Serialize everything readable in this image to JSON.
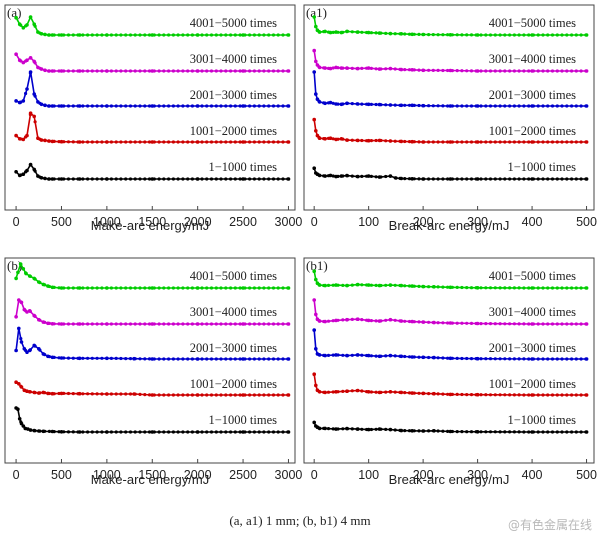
{
  "caption": "(a, a1) 1 mm; (b, b1) 4 mm",
  "watermark": "@有色金属在线",
  "series_names": [
    "4001−5000 times",
    "3001−4000 times",
    "2001−3000 times",
    "1001−2000 times",
    "1−1000 times"
  ],
  "colors": {
    "4001−5000 times": "#00cc00",
    "3001−4000 times": "#cc00cc",
    "2001−3000 times": "#0000cc",
    "1001−2000 times": "#cc0000",
    "1−1000 times": "#000000"
  },
  "chart_data": [
    {
      "type": "line",
      "panel": "(a)",
      "xlabel": "Make-arc energy/mJ",
      "xlim": [
        -100,
        3050
      ],
      "xticks": [
        "0",
        "500",
        "1000",
        "1500",
        "2000",
        "2500",
        "3000"
      ],
      "legend_placement": "inline-right",
      "grid": false,
      "series": [
        {
          "name": "4001−5000 times",
          "x": [
            0,
            40,
            80,
            120,
            160,
            200,
            240,
            280,
            320,
            360,
            400,
            500,
            700,
            1000,
            1500,
            2000,
            2500,
            3000
          ],
          "y": [
            0.72,
            0.45,
            0.3,
            0.42,
            0.75,
            0.45,
            0.12,
            0.05,
            0.02,
            0,
            0,
            0,
            0,
            0,
            0,
            0,
            0,
            0
          ]
        },
        {
          "name": "3001−4000 times",
          "x": [
            0,
            40,
            80,
            120,
            160,
            200,
            240,
            280,
            320,
            360,
            400,
            500,
            700,
            1000,
            1500,
            2000,
            2500,
            3000
          ],
          "y": [
            0.7,
            0.45,
            0.35,
            0.45,
            0.55,
            0.4,
            0.15,
            0.08,
            0.03,
            0,
            0,
            0,
            0,
            0,
            0,
            0,
            0,
            0
          ]
        },
        {
          "name": "2001−3000 times",
          "x": [
            0,
            40,
            80,
            120,
            160,
            200,
            240,
            280,
            320,
            360,
            400,
            500,
            700,
            1000,
            1500,
            2000,
            2500,
            3000
          ],
          "y": [
            0.15,
            0.1,
            0.15,
            0.5,
            1,
            0.35,
            0.12,
            0.05,
            0.02,
            0,
            0,
            0,
            0,
            0,
            0,
            0,
            0,
            0
          ]
        },
        {
          "name": "1001−2000 times",
          "x": [
            0,
            40,
            80,
            120,
            160,
            200,
            240,
            280,
            320,
            360,
            400,
            500,
            700,
            1000,
            1500,
            2000,
            2500,
            3000
          ],
          "y": [
            0.2,
            0.1,
            0.08,
            0.2,
            0.9,
            0.8,
            0.12,
            0.06,
            0.05,
            0.03,
            0.02,
            0.01,
            0,
            0,
            0,
            0,
            0,
            0
          ]
        },
        {
          "name": "1−1000 times",
          "x": [
            0,
            40,
            80,
            120,
            160,
            200,
            240,
            280,
            320,
            360,
            400,
            500,
            700,
            1000,
            1500,
            2000,
            2500,
            3000
          ],
          "y": [
            0.3,
            0.15,
            0.2,
            0.35,
            0.6,
            0.4,
            0.12,
            0.05,
            0.02,
            0,
            0,
            0,
            0,
            0,
            0,
            0,
            0,
            0
          ]
        }
      ]
    },
    {
      "type": "line",
      "panel": "(a1)",
      "xlabel": "Break-arc energy/mJ",
      "xlim": [
        -15,
        510
      ],
      "xticks": [
        "0",
        "100",
        "200",
        "300",
        "400",
        "500"
      ],
      "legend_placement": "inline-right",
      "grid": false,
      "series": [
        {
          "name": "4001−5000 times",
          "x": [
            0,
            3,
            6,
            10,
            20,
            30,
            40,
            50,
            60,
            80,
            100,
            120,
            140,
            160,
            180,
            200,
            250,
            300,
            400,
            500
          ],
          "y": [
            0.75,
            0.35,
            0.2,
            0.12,
            0.15,
            0.1,
            0.12,
            0.1,
            0.15,
            0.12,
            0.1,
            0.08,
            0.06,
            0.05,
            0.03,
            0.02,
            0.01,
            0,
            0,
            0
          ]
        },
        {
          "name": "3001−4000 times",
          "x": [
            0,
            3,
            6,
            10,
            20,
            30,
            40,
            50,
            60,
            80,
            100,
            120,
            140,
            160,
            180,
            200,
            250,
            300,
            400,
            500
          ],
          "y": [
            0.85,
            0.4,
            0.25,
            0.15,
            0.12,
            0.1,
            0.15,
            0.12,
            0.12,
            0.1,
            0.12,
            0.08,
            0.1,
            0.06,
            0.05,
            0.03,
            0.02,
            0,
            0,
            0
          ]
        },
        {
          "name": "2001−3000 times",
          "x": [
            0,
            3,
            6,
            10,
            20,
            30,
            40,
            50,
            60,
            80,
            100,
            120,
            140,
            160,
            180,
            200,
            250,
            300,
            400,
            500
          ],
          "y": [
            1,
            0.35,
            0.2,
            0.12,
            0.08,
            0.1,
            0.06,
            0.05,
            0.08,
            0.06,
            0.05,
            0.04,
            0.03,
            0.02,
            0.02,
            0.01,
            0,
            0,
            0,
            0
          ]
        },
        {
          "name": "1001−2000 times",
          "x": [
            0,
            3,
            6,
            10,
            20,
            30,
            40,
            50,
            60,
            80,
            100,
            120,
            140,
            160,
            180,
            200,
            250,
            300,
            400,
            500
          ],
          "y": [
            0.7,
            0.35,
            0.2,
            0.12,
            0.1,
            0.12,
            0.08,
            0.1,
            0.06,
            0.05,
            0.04,
            0.05,
            0.03,
            0.02,
            0.01,
            0,
            0,
            0,
            0,
            0
          ]
        },
        {
          "name": "1−1000 times",
          "x": [
            0,
            3,
            6,
            10,
            20,
            30,
            40,
            50,
            60,
            80,
            100,
            120,
            140,
            150,
            160,
            180,
            200,
            250,
            300,
            400,
            500
          ],
          "y": [
            0.45,
            0.25,
            0.2,
            0.15,
            0.12,
            0.15,
            0.1,
            0.12,
            0.14,
            0.1,
            0.12,
            0.08,
            0.12,
            0.04,
            0.02,
            0.01,
            0,
            0,
            0,
            0,
            0
          ]
        }
      ]
    },
    {
      "type": "line",
      "panel": "(b)",
      "xlabel": "Make-arc energy/mJ",
      "xlim": [
        -100,
        3050
      ],
      "xticks": [
        "0",
        "500",
        "1000",
        "1500",
        "2000",
        "2500",
        "3000"
      ],
      "legend_placement": "inline-right",
      "grid": false,
      "series": [
        {
          "name": "4001−5000 times",
          "x": [
            0,
            20,
            50,
            80,
            110,
            150,
            200,
            250,
            300,
            350,
            400,
            500,
            700,
            1000,
            1500,
            2000,
            2500,
            3000
          ],
          "y": [
            0.4,
            0.65,
            1,
            0.8,
            0.6,
            0.5,
            0.4,
            0.25,
            0.15,
            0.08,
            0.03,
            0,
            0,
            0,
            0,
            0,
            0,
            0
          ]
        },
        {
          "name": "3001−4000 times",
          "x": [
            0,
            30,
            60,
            90,
            120,
            150,
            200,
            250,
            300,
            350,
            400,
            500,
            700,
            1000,
            1500,
            2000,
            2500,
            3000
          ],
          "y": [
            0.3,
            1,
            0.9,
            0.6,
            0.5,
            0.55,
            0.35,
            0.18,
            0.08,
            0.03,
            0.01,
            0,
            0,
            0,
            0,
            0,
            0,
            0
          ]
        },
        {
          "name": "2001−3000 times",
          "x": [
            0,
            30,
            60,
            90,
            120,
            150,
            200,
            250,
            300,
            350,
            400,
            500,
            700,
            1000,
            1300,
            1500,
            2000,
            2500,
            3000
          ],
          "y": [
            0.25,
            0.9,
            0.5,
            0.3,
            0.2,
            0.25,
            0.4,
            0.3,
            0.15,
            0.08,
            0.05,
            0.03,
            0.02,
            0.02,
            0.01,
            0,
            0,
            0,
            0
          ]
        },
        {
          "name": "1001−2000 times",
          "x": [
            0,
            30,
            60,
            90,
            120,
            150,
            200,
            250,
            300,
            350,
            400,
            500,
            700,
            1000,
            1300,
            1500,
            2000,
            2500,
            3000
          ],
          "y": [
            0.4,
            0.35,
            0.25,
            0.15,
            0.12,
            0.1,
            0.08,
            0.06,
            0.08,
            0.05,
            0.04,
            0.05,
            0.04,
            0.03,
            0.03,
            0,
            0,
            0,
            0
          ]
        },
        {
          "name": "1−1000 times",
          "x": [
            0,
            20,
            40,
            60,
            80,
            100,
            130,
            160,
            200,
            250,
            300,
            400,
            500,
            700,
            1000,
            1500,
            2000,
            2500,
            3000
          ],
          "y": [
            1,
            0.95,
            0.55,
            0.35,
            0.25,
            0.15,
            0.12,
            0.08,
            0.06,
            0.04,
            0.03,
            0.02,
            0.01,
            0,
            0,
            0,
            0,
            0,
            0
          ]
        }
      ]
    },
    {
      "type": "line",
      "panel": "(b1)",
      "xlabel": "Break-arc energy/mJ",
      "xlim": [
        -15,
        510
      ],
      "xticks": [
        "0",
        "100",
        "200",
        "300",
        "400",
        "500"
      ],
      "legend_placement": "inline-right",
      "grid": false,
      "series": [
        {
          "name": "4001−5000 times",
          "x": [
            0,
            3,
            6,
            10,
            20,
            40,
            60,
            80,
            100,
            120,
            140,
            160,
            180,
            200,
            220,
            250,
            300,
            400,
            500
          ],
          "y": [
            0.7,
            0.35,
            0.2,
            0.12,
            0.1,
            0.12,
            0.1,
            0.14,
            0.12,
            0.1,
            0.12,
            0.1,
            0.08,
            0.06,
            0.05,
            0.03,
            0.01,
            0,
            0
          ]
        },
        {
          "name": "3001−4000 times",
          "x": [
            0,
            3,
            6,
            10,
            20,
            40,
            60,
            80,
            100,
            120,
            140,
            160,
            180,
            200,
            220,
            250,
            300,
            400,
            500
          ],
          "y": [
            1,
            0.4,
            0.2,
            0.12,
            0.1,
            0.15,
            0.18,
            0.2,
            0.15,
            0.12,
            0.18,
            0.12,
            0.1,
            0.08,
            0.06,
            0.04,
            0.02,
            0,
            0
          ]
        },
        {
          "name": "2001−3000 times",
          "x": [
            0,
            3,
            6,
            10,
            20,
            40,
            60,
            80,
            100,
            120,
            140,
            160,
            180,
            200,
            220,
            250,
            300,
            400,
            500
          ],
          "y": [
            0.85,
            0.3,
            0.15,
            0.12,
            0.1,
            0.12,
            0.1,
            0.12,
            0.1,
            0.08,
            0.1,
            0.08,
            0.06,
            0.05,
            0.04,
            0.02,
            0.01,
            0,
            0
          ]
        },
        {
          "name": "1001−2000 times",
          "x": [
            0,
            3,
            6,
            10,
            20,
            40,
            60,
            80,
            100,
            120,
            140,
            160,
            180,
            200,
            220,
            250,
            300,
            400,
            500
          ],
          "y": [
            0.65,
            0.3,
            0.15,
            0.1,
            0.08,
            0.1,
            0.12,
            0.14,
            0.1,
            0.08,
            0.1,
            0.08,
            0.06,
            0.05,
            0.04,
            0.02,
            0.01,
            0,
            0
          ]
        },
        {
          "name": "1−1000 times",
          "x": [
            0,
            3,
            6,
            10,
            20,
            40,
            60,
            80,
            100,
            120,
            140,
            160,
            180,
            200,
            220,
            250,
            300,
            400,
            500
          ],
          "y": [
            0.4,
            0.25,
            0.2,
            0.15,
            0.15,
            0.12,
            0.14,
            0.12,
            0.1,
            0.12,
            0.1,
            0.06,
            0.05,
            0.04,
            0.05,
            0.02,
            0.01,
            0,
            0
          ]
        }
      ]
    }
  ]
}
